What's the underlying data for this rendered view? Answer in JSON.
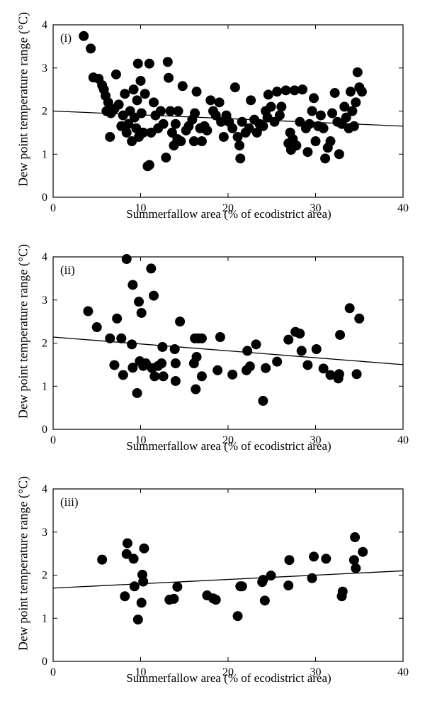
{
  "chart_data": [
    {
      "type": "scatter",
      "panel_tag": "(i)",
      "xlabel": "Summerfallow area (% of ecodistrict area)",
      "ylabel": "Dew point temperature range (°C)",
      "xlim": [
        0,
        40
      ],
      "ylim": [
        0,
        4
      ],
      "xticks": [
        "0",
        "10",
        "20",
        "30",
        "40"
      ],
      "yticks": [
        "0",
        "1",
        "2",
        "3",
        "4"
      ],
      "grid": false,
      "legend": "none",
      "trend": [
        [
          0,
          2.0
        ],
        [
          40,
          1.65
        ]
      ],
      "points": [
        [
          3.5,
          3.74
        ],
        [
          4.3,
          3.45
        ],
        [
          4.6,
          2.78
        ],
        [
          5.2,
          2.75
        ],
        [
          5.6,
          2.6
        ],
        [
          5.8,
          2.5
        ],
        [
          6.0,
          2.35
        ],
        [
          6.3,
          2.2
        ],
        [
          6.1,
          2.0
        ],
        [
          6.6,
          1.95
        ],
        [
          6.5,
          1.4
        ],
        [
          7.0,
          2.05
        ],
        [
          7.5,
          2.15
        ],
        [
          7.2,
          2.85
        ],
        [
          7.8,
          1.65
        ],
        [
          8.0,
          1.9
        ],
        [
          8.2,
          2.4
        ],
        [
          8.4,
          1.5
        ],
        [
          8.6,
          1.7
        ],
        [
          8.8,
          2.0
        ],
        [
          9.0,
          1.3
        ],
        [
          9.2,
          2.5
        ],
        [
          9.3,
          1.85
        ],
        [
          9.5,
          1.6
        ],
        [
          9.6,
          2.25
        ],
        [
          9.8,
          1.4
        ],
        [
          10.0,
          2.7
        ],
        [
          10.1,
          1.95
        ],
        [
          10.3,
          1.5
        ],
        [
          10.5,
          2.4
        ],
        [
          9.7,
          3.1
        ],
        [
          11.0,
          3.1
        ],
        [
          10.8,
          0.72
        ],
        [
          11.0,
          0.75
        ],
        [
          11.2,
          1.5
        ],
        [
          11.5,
          2.2
        ],
        [
          11.7,
          1.9
        ],
        [
          12.0,
          1.6
        ],
        [
          12.3,
          2.0
        ],
        [
          12.6,
          1.7
        ],
        [
          12.9,
          0.92
        ],
        [
          13.1,
          3.14
        ],
        [
          13.2,
          2.77
        ],
        [
          13.4,
          2.0
        ],
        [
          13.6,
          1.5
        ],
        [
          13.8,
          1.2
        ],
        [
          14.0,
          1.7
        ],
        [
          14.2,
          1.35
        ],
        [
          14.3,
          2.0
        ],
        [
          14.6,
          1.3
        ],
        [
          14.8,
          2.58
        ],
        [
          15.2,
          1.55
        ],
        [
          15.5,
          1.65
        ],
        [
          15.9,
          1.8
        ],
        [
          16.1,
          1.3
        ],
        [
          16.2,
          1.95
        ],
        [
          16.4,
          2.45
        ],
        [
          16.8,
          1.6
        ],
        [
          17.0,
          1.3
        ],
        [
          17.3,
          1.65
        ],
        [
          17.6,
          1.55
        ],
        [
          18.0,
          2.25
        ],
        [
          18.3,
          2.0
        ],
        [
          18.6,
          1.9
        ],
        [
          19.0,
          2.2
        ],
        [
          19.2,
          1.75
        ],
        [
          19.5,
          1.4
        ],
        [
          19.8,
          1.9
        ],
        [
          20.1,
          1.75
        ],
        [
          20.5,
          1.6
        ],
        [
          20.8,
          2.55
        ],
        [
          21.1,
          1.4
        ],
        [
          21.3,
          1.2
        ],
        [
          21.4,
          0.9
        ],
        [
          21.6,
          1.75
        ],
        [
          22.0,
          1.5
        ],
        [
          22.4,
          1.6
        ],
        [
          22.6,
          2.25
        ],
        [
          23.0,
          1.8
        ],
        [
          23.3,
          1.5
        ],
        [
          23.6,
          1.7
        ],
        [
          24.0,
          1.65
        ],
        [
          24.3,
          2.0
        ],
        [
          24.5,
          1.85
        ],
        [
          24.6,
          2.38
        ],
        [
          24.9,
          2.1
        ],
        [
          25.3,
          1.75
        ],
        [
          25.6,
          2.45
        ],
        [
          25.9,
          1.9
        ],
        [
          26.1,
          2.1
        ],
        [
          26.6,
          2.48
        ],
        [
          26.9,
          1.25
        ],
        [
          27.1,
          1.5
        ],
        [
          27.2,
          1.1
        ],
        [
          27.4,
          1.35
        ],
        [
          27.6,
          2.48
        ],
        [
          27.8,
          1.2
        ],
        [
          28.2,
          1.75
        ],
        [
          28.5,
          2.5
        ],
        [
          28.9,
          1.6
        ],
        [
          29.1,
          1.05
        ],
        [
          29.3,
          1.7
        ],
        [
          29.6,
          2.0
        ],
        [
          29.8,
          2.3
        ],
        [
          30.0,
          1.3
        ],
        [
          30.3,
          1.65
        ],
        [
          30.6,
          1.9
        ],
        [
          30.9,
          1.6
        ],
        [
          31.1,
          0.9
        ],
        [
          31.4,
          1.15
        ],
        [
          31.7,
          1.3
        ],
        [
          31.9,
          1.95
        ],
        [
          32.2,
          2.42
        ],
        [
          32.5,
          1.75
        ],
        [
          32.7,
          1.0
        ],
        [
          33.0,
          1.7
        ],
        [
          33.3,
          2.1
        ],
        [
          33.5,
          1.85
        ],
        [
          33.8,
          1.6
        ],
        [
          34.0,
          2.45
        ],
        [
          34.2,
          2.0
        ],
        [
          34.4,
          1.65
        ],
        [
          34.6,
          2.2
        ],
        [
          34.8,
          2.9
        ],
        [
          35.0,
          2.55
        ],
        [
          35.3,
          2.45
        ]
      ]
    },
    {
      "type": "scatter",
      "panel_tag": "(ii)",
      "xlabel": "Summerfallow area (% of ecodistrict area)",
      "ylabel": "Dew point temperature range (°C)",
      "xlim": [
        0,
        40
      ],
      "ylim": [
        0,
        4
      ],
      "xticks": [
        "0",
        "10",
        "20",
        "30",
        "40"
      ],
      "yticks": [
        "0",
        "1",
        "2",
        "3",
        "4"
      ],
      "grid": false,
      "legend": "none",
      "trend": [
        [
          0,
          2.14
        ],
        [
          40,
          1.5
        ]
      ],
      "points": [
        [
          4.0,
          2.74
        ],
        [
          5.0,
          2.37
        ],
        [
          6.5,
          2.11
        ],
        [
          7.0,
          1.49
        ],
        [
          7.3,
          2.57
        ],
        [
          7.8,
          2.11
        ],
        [
          8.0,
          1.26
        ],
        [
          8.4,
          3.95
        ],
        [
          9.0,
          1.97
        ],
        [
          9.1,
          1.43
        ],
        [
          9.1,
          3.35
        ],
        [
          9.6,
          0.84
        ],
        [
          9.8,
          2.96
        ],
        [
          9.9,
          1.58
        ],
        [
          10.1,
          2.7
        ],
        [
          10.3,
          1.47
        ],
        [
          10.6,
          1.53
        ],
        [
          11.2,
          3.73
        ],
        [
          11.3,
          1.42
        ],
        [
          11.5,
          3.1
        ],
        [
          11.6,
          1.23
        ],
        [
          12.0,
          1.47
        ],
        [
          12.4,
          1.53
        ],
        [
          12.5,
          1.91
        ],
        [
          12.6,
          1.23
        ],
        [
          13.9,
          1.86
        ],
        [
          14.0,
          1.12
        ],
        [
          14.0,
          1.53
        ],
        [
          14.5,
          2.5
        ],
        [
          16.1,
          1.53
        ],
        [
          16.2,
          2.11
        ],
        [
          16.3,
          0.93
        ],
        [
          16.4,
          1.68
        ],
        [
          16.6,
          2.11
        ],
        [
          17.0,
          1.23
        ],
        [
          17.0,
          2.11
        ],
        [
          18.8,
          1.37
        ],
        [
          19.1,
          2.14
        ],
        [
          20.5,
          1.27
        ],
        [
          22.1,
          1.37
        ],
        [
          22.2,
          1.82
        ],
        [
          22.5,
          1.46
        ],
        [
          23.2,
          1.97
        ],
        [
          24.0,
          0.66
        ],
        [
          24.3,
          1.42
        ],
        [
          25.6,
          1.57
        ],
        [
          26.9,
          2.08
        ],
        [
          27.7,
          2.26
        ],
        [
          28.2,
          2.22
        ],
        [
          28.4,
          1.82
        ],
        [
          29.1,
          1.49
        ],
        [
          30.1,
          1.86
        ],
        [
          30.9,
          1.41
        ],
        [
          31.7,
          1.26
        ],
        [
          32.6,
          1.18
        ],
        [
          32.7,
          1.28
        ],
        [
          32.8,
          2.19
        ],
        [
          33.9,
          2.81
        ],
        [
          34.7,
          1.28
        ],
        [
          35.0,
          2.57
        ]
      ]
    },
    {
      "type": "scatter",
      "panel_tag": "(iii)",
      "xlabel": "Summerfallow area (% of ecodistrict area)",
      "ylabel": "Dew point temperature range (°C)",
      "xlim": [
        0,
        40
      ],
      "ylim": [
        0,
        4
      ],
      "xticks": [
        "0",
        "10",
        "20",
        "30",
        "40"
      ],
      "yticks": [
        "0",
        "1",
        "2",
        "3",
        "4"
      ],
      "grid": false,
      "legend": "none",
      "trend": [
        [
          0,
          1.7
        ],
        [
          40,
          2.1
        ]
      ],
      "points": [
        [
          5.6,
          2.36
        ],
        [
          8.2,
          1.51
        ],
        [
          8.4,
          2.49
        ],
        [
          8.5,
          2.74
        ],
        [
          9.2,
          2.38
        ],
        [
          9.3,
          1.74
        ],
        [
          9.7,
          0.97
        ],
        [
          10.1,
          1.36
        ],
        [
          10.2,
          2.01
        ],
        [
          10.3,
          1.85
        ],
        [
          10.4,
          2.62
        ],
        [
          13.3,
          1.43
        ],
        [
          13.8,
          1.45
        ],
        [
          14.2,
          1.73
        ],
        [
          17.6,
          1.53
        ],
        [
          18.3,
          1.46
        ],
        [
          18.6,
          1.43
        ],
        [
          21.1,
          1.05
        ],
        [
          21.4,
          1.74
        ],
        [
          21.6,
          1.74
        ],
        [
          23.9,
          1.84
        ],
        [
          24.0,
          1.89
        ],
        [
          24.2,
          1.41
        ],
        [
          24.9,
          1.99
        ],
        [
          26.9,
          1.76
        ],
        [
          27.0,
          2.35
        ],
        [
          29.6,
          1.93
        ],
        [
          29.8,
          2.43
        ],
        [
          31.2,
          2.38
        ],
        [
          33.0,
          1.51
        ],
        [
          33.1,
          1.62
        ],
        [
          34.4,
          2.35
        ],
        [
          34.5,
          2.88
        ],
        [
          34.6,
          2.16
        ],
        [
          35.4,
          2.54
        ]
      ]
    }
  ]
}
